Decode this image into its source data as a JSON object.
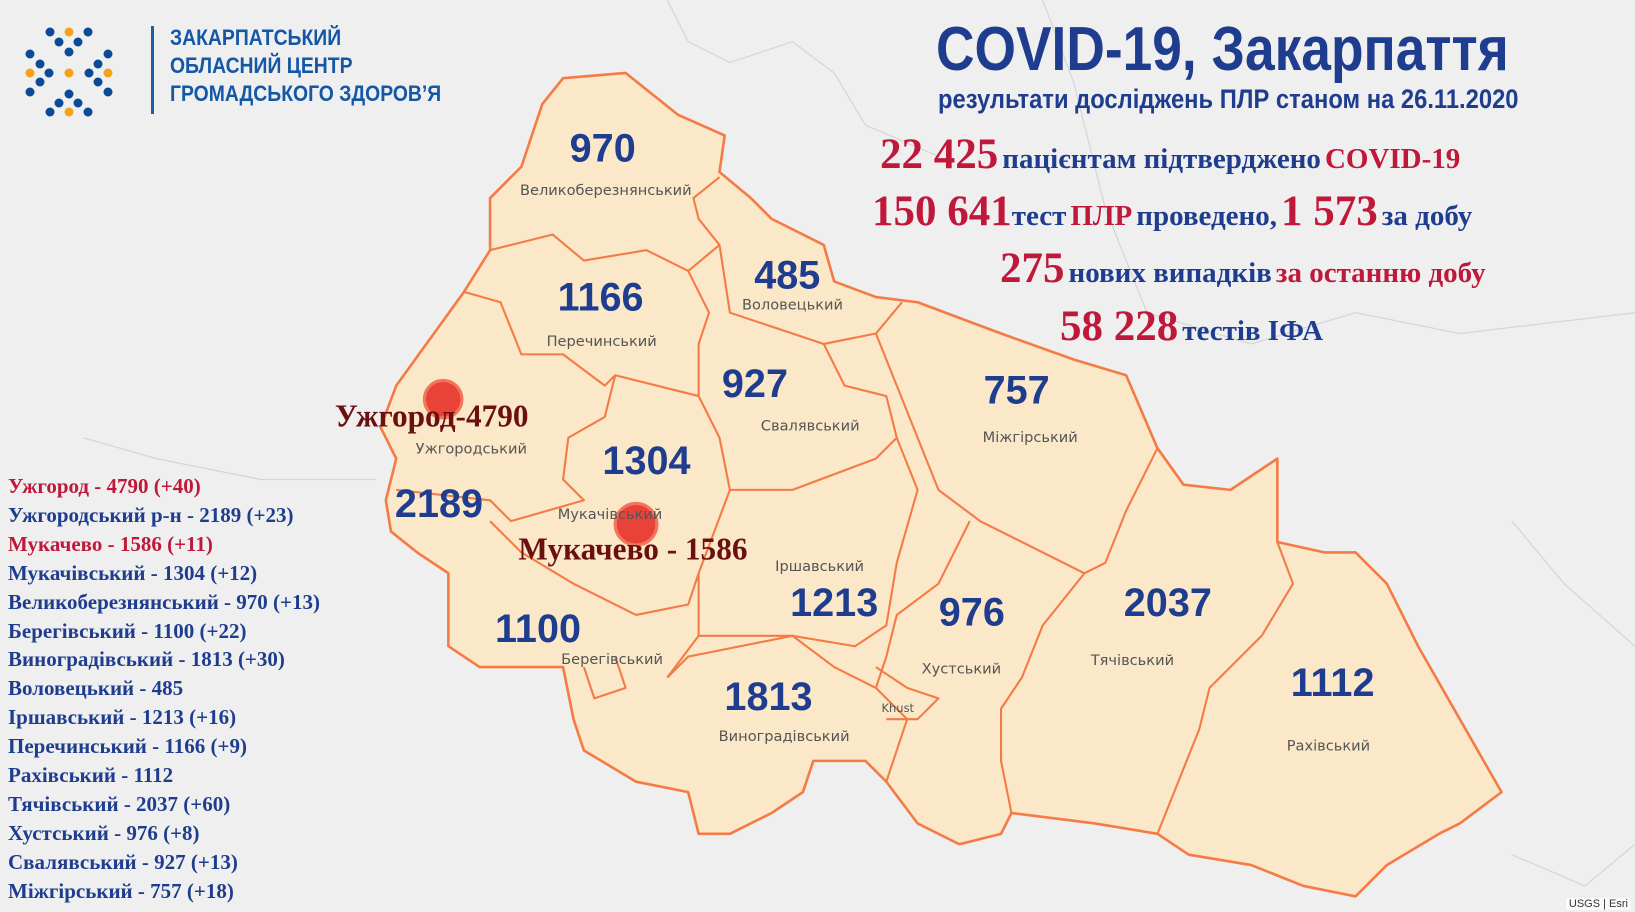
{
  "logo": {
    "lines": [
      "ЗАКАРПАТСЬКИЙ",
      "ОБЛАСНИЙ ЦЕНТР",
      "ГРОМАДСЬКОГО ЗДОРОВ’Я"
    ]
  },
  "header": {
    "title": "COVID-19, Закарпаття",
    "subtitle_prefix": "результати досліджень ПЛР станом на",
    "date": "26.11.2020"
  },
  "stats": {
    "confirmed": "22 425",
    "confirmed_text": "пацієнтам підтверджено",
    "confirmed_tag": "COVID-19",
    "pcr_total": "150 641",
    "pcr_text1": "тест",
    "pcr_tag": "ПЛР",
    "pcr_text2": "проведено,",
    "pcr_daily": "1 573",
    "pcr_text3": "за добу",
    "new_cases": "275",
    "new_text": "нових випадків",
    "new_tag": "за останню добу",
    "ifa": "58 228",
    "ifa_text": "тестів ІФА"
  },
  "districts": [
    {
      "name": "Великоберезнянський",
      "count": "970"
    },
    {
      "name": "Перечинський",
      "count": "1166"
    },
    {
      "name": "Воловецький",
      "count": "485"
    },
    {
      "name": "Свалявський",
      "count": "927"
    },
    {
      "name": "Міжгірський",
      "count": "757"
    },
    {
      "name": "Ужгородський",
      "count": "2189"
    },
    {
      "name": "Мукачівський",
      "count": "1304"
    },
    {
      "name": "Іршавський",
      "count": "1213"
    },
    {
      "name": "Хустський",
      "count": "976"
    },
    {
      "name": "Тячівський",
      "count": "2037"
    },
    {
      "name": "Рахівський",
      "count": "1112"
    },
    {
      "name": "Берегівський",
      "count": "1100"
    },
    {
      "name": "Виноградівський",
      "count": "1813"
    }
  ],
  "map_labels": {
    "khust": "Khust",
    "uzhhorod_city": "Ужгород-4790",
    "mukachevo_city": "Мукачево - 1586"
  },
  "list": [
    {
      "text": "Ужгород - 4790 (+40)",
      "color": "#c0183a"
    },
    {
      "text": "Ужгородський р-н - 2189 (+23)",
      "color": "#1f3d8f"
    },
    {
      "text": "Мукачево - 1586 (+11)",
      "color": "#c0183a"
    },
    {
      "text": "Мукачівський - 1304 (+12)",
      "color": "#1f3d8f"
    },
    {
      "text": "Великоберезнянський - 970 (+13)",
      "color": "#1f3d8f"
    },
    {
      "text": "Берегівський - 1100 (+22)",
      "color": "#1f3d8f"
    },
    {
      "text": "Виноградівський - 1813 (+30)",
      "color": "#1f3d8f"
    },
    {
      "text": "Воловецький - 485",
      "color": "#1f3d8f"
    },
    {
      "text": "Іршавський - 1213 (+16)",
      "color": "#1f3d8f"
    },
    {
      "text": "Перечинський - 1166 (+9)",
      "color": "#1f3d8f"
    },
    {
      "text": "Рахівський - 1112",
      "color": "#1f3d8f"
    },
    {
      "text": "Тячівський - 2037 (+60)",
      "color": "#1f3d8f"
    },
    {
      "text": "Хустський - 976 (+8)",
      "color": "#1f3d8f"
    },
    {
      "text": "Свалявський - 927 (+13)",
      "color": "#1f3d8f"
    },
    {
      "text": "Міжгірський - 757 (+18)",
      "color": "#1f3d8f"
    }
  ],
  "attribution": "USGS | Esri",
  "colors": {
    "blue": "#1f3d8f",
    "red": "#c0183a",
    "region_fill": "#fbe8c8",
    "border": "#f47b45",
    "logo_orange": "#f5a21b",
    "logo_blue": "#0a4a97"
  }
}
